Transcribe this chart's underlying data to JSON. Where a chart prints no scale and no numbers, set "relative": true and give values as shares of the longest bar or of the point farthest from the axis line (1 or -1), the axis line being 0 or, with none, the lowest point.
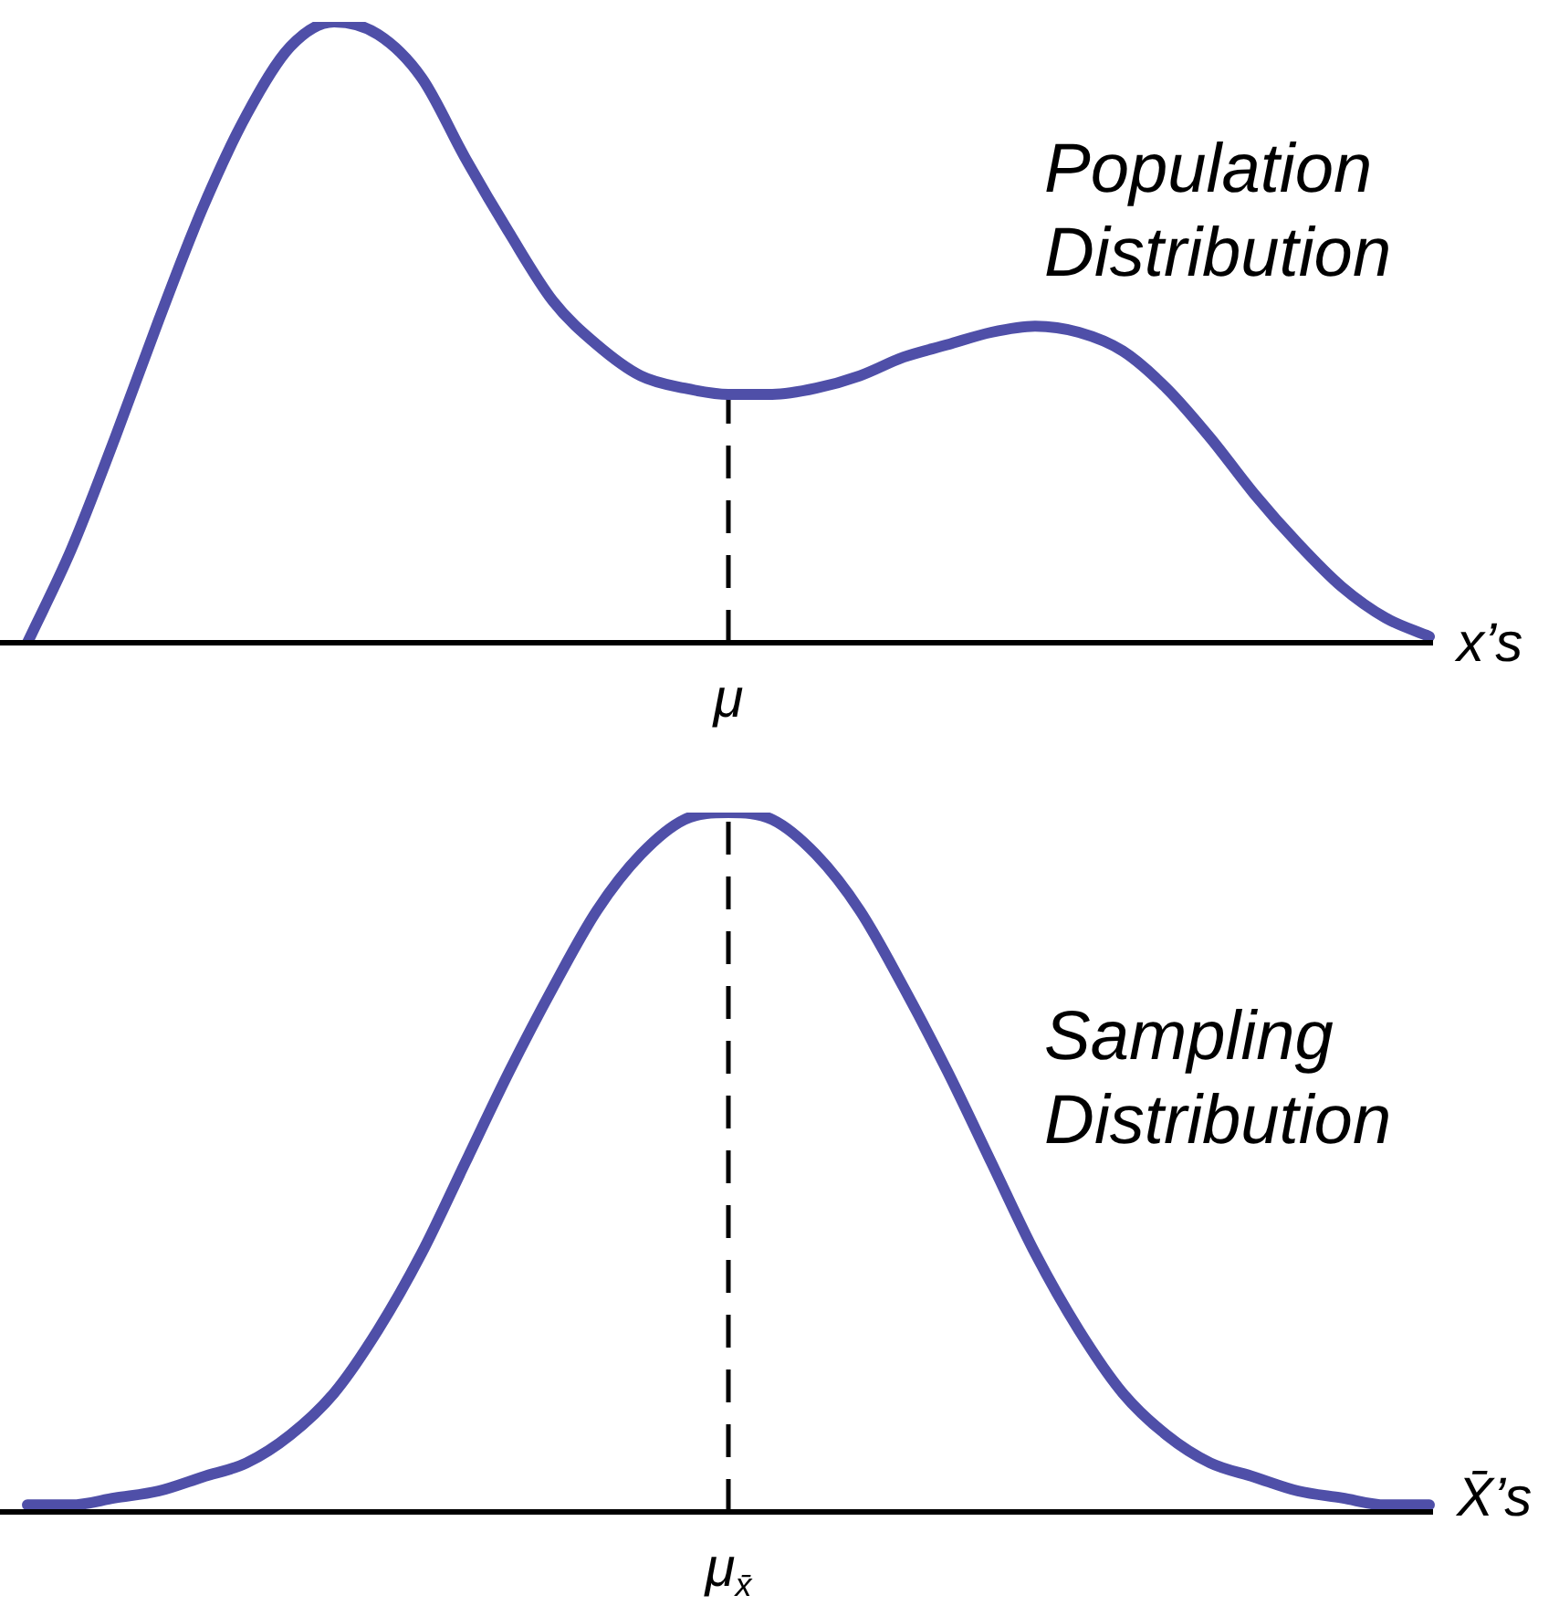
{
  "chart_data": [
    {
      "type": "line",
      "title": "Population Distribution",
      "xlabel": "x’s",
      "relative": true,
      "legend": false,
      "marker": "none",
      "line_style": "solid",
      "annotations": [
        "μ"
      ],
      "categories": [
        null,
        null,
        null,
        null,
        null,
        null,
        null,
        null,
        null,
        null,
        null,
        null,
        null,
        null,
        null,
        null,
        null,
        null,
        null,
        null,
        null,
        null,
        null,
        null,
        null,
        null,
        null,
        null,
        null,
        null,
        null,
        null,
        null
      ],
      "series": [
        {
          "color": "#4f4fa8",
          "values": [
            0,
            0.15,
            0.33,
            0.52,
            0.7,
            0.85,
            0.96,
            1,
            0.98,
            0.91,
            0.78,
            0.66,
            0.55,
            0.48,
            0.43,
            0.41,
            0.4,
            0.4,
            0.41,
            0.43,
            0.46,
            0.48,
            0.5,
            0.51,
            0.5,
            0.47,
            0.41,
            0.33,
            0.24,
            0.16,
            0.09,
            0.04,
            0.01
          ]
        }
      ]
    },
    {
      "type": "line",
      "title": "Sampling Distribution",
      "xlabel": "X̄’s",
      "relative": true,
      "legend": false,
      "marker": "none",
      "line_style": "solid",
      "annotations": [
        "μ$_{x̄}$"
      ],
      "categories": [
        null,
        null,
        null,
        null,
        null,
        null,
        null,
        null,
        null,
        null,
        null,
        null,
        null,
        null,
        null,
        null,
        null,
        null,
        null,
        null,
        null,
        null,
        null,
        null,
        null,
        null,
        null,
        null,
        null,
        null,
        null,
        null,
        null
      ],
      "series": [
        {
          "color": "#4f4fa8",
          "values": [
            0.01,
            0.01,
            0.02,
            0.03,
            0.05,
            0.07,
            0.11,
            0.17,
            0.26,
            0.37,
            0.5,
            0.63,
            0.75,
            0.86,
            0.94,
            0.99,
            1,
            0.99,
            0.94,
            0.86,
            0.75,
            0.63,
            0.5,
            0.37,
            0.26,
            0.17,
            0.11,
            0.07,
            0.05,
            0.03,
            0.02,
            0.01,
            0.01
          ]
        }
      ]
    }
  ]
}
